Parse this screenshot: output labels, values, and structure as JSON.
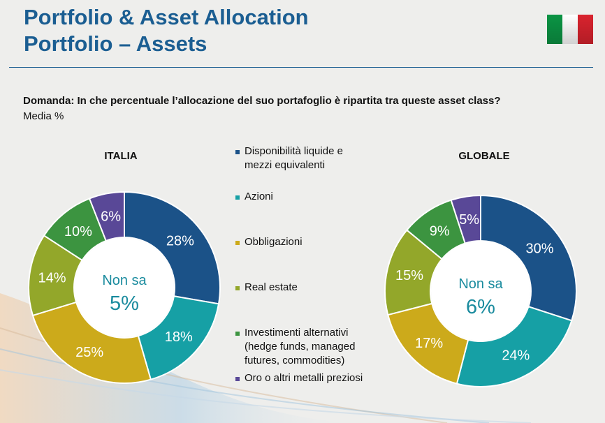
{
  "header": {
    "title_line1": "Portfolio & Asset Allocation",
    "title_line2": "Portfolio – Assets"
  },
  "flag": {
    "icon": "italian-flag-icon",
    "colors": [
      "#0b9444",
      "#ffffff",
      "#d9232e"
    ]
  },
  "question": "Domanda: In che percentuale l’allocazione del suo portafoglio è ripartita tra queste asset class?",
  "subquestion": "Media %",
  "legend": [
    {
      "label": "Disponibilità liquide e mezzi equivalenti",
      "color": "#1b5288"
    },
    {
      "label": "Azioni",
      "color": "#16a0a5"
    },
    {
      "label": "Obbligazioni",
      "color": "#ccaa1b"
    },
    {
      "label": "Real estate",
      "color": "#93a72a"
    },
    {
      "label": "Investimenti alternativi (hedge funds, managed futures, commodities)",
      "color": "#3c9440"
    },
    {
      "label": "Oro o altri metalli preziosi",
      "color": "#594897"
    }
  ],
  "chart_data": [
    {
      "type": "pie",
      "title": "ITALIA",
      "center_label": "Non sa",
      "center_value": "5%",
      "categories": [
        "Disponibilità liquide e mezzi equivalenti",
        "Azioni",
        "Obbligazioni",
        "Real estate",
        "Investimenti alternativi (hedge funds, managed futures, commodities)",
        "Oro o altri metalli preziosi"
      ],
      "values": [
        28,
        18,
        25,
        14,
        10,
        6
      ],
      "labels": [
        "28%",
        "18%",
        "25%",
        "14%",
        "10%",
        "6%"
      ],
      "colors": [
        "#1b5288",
        "#16a0a5",
        "#ccaa1b",
        "#93a72a",
        "#3c9440",
        "#594897"
      ]
    },
    {
      "type": "pie",
      "title": "GLOBALE",
      "center_label": "Non sa",
      "center_value": "6%",
      "categories": [
        "Disponibilità liquide e mezzi equivalenti",
        "Azioni",
        "Obbligazioni",
        "Real estate",
        "Investimenti alternativi (hedge funds, managed futures, commodities)",
        "Oro o altri metalli preziosi"
      ],
      "values": [
        30,
        24,
        17,
        15,
        9,
        5
      ],
      "labels": [
        "30%",
        "24%",
        "17%",
        "15%",
        "9%",
        "5%"
      ],
      "colors": [
        "#1b5288",
        "#16a0a5",
        "#ccaa1b",
        "#93a72a",
        "#3c9440",
        "#594897"
      ]
    }
  ]
}
